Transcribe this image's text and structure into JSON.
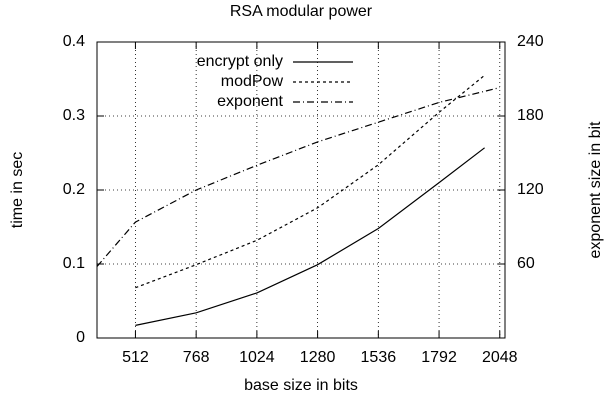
{
  "chart_data": {
    "type": "line",
    "title": "RSA modular power",
    "x_label": "base size in bits",
    "y_label": "time in sec",
    "y2_label": "exponent size in bit",
    "xlim": [
      350,
      2070
    ],
    "xticks": [
      512,
      768,
      1024,
      1280,
      1536,
      1792,
      2048
    ],
    "ylim": [
      0,
      0.4
    ],
    "yticks": [
      0,
      0.1,
      0.2,
      0.3,
      0.4
    ],
    "y2lim": [
      0,
      240
    ],
    "y2ticks": [
      60,
      120,
      180,
      240
    ],
    "grid": true,
    "legend": "top-left",
    "series": [
      {
        "name": "encrypt only",
        "color": "#000000",
        "dash": "solid",
        "x": [
          512,
          768,
          1024,
          1280,
          1536,
          1792,
          1984
        ],
        "values": [
          0.017,
          0.034,
          0.061,
          0.099,
          0.148,
          0.21,
          0.257
        ]
      },
      {
        "name": "modPow",
        "color": "#000000",
        "dash": "dashed",
        "x": [
          512,
          768,
          1024,
          1280,
          1536,
          1792,
          1984
        ],
        "values": [
          0.068,
          0.099,
          0.132,
          0.176,
          0.234,
          0.305,
          0.355
        ]
      },
      {
        "name": "exponent",
        "color": "#000000",
        "dash": "dashdot",
        "axis": "y2",
        "x": [
          350,
          512,
          768,
          1024,
          1280,
          1536,
          1792,
          2048
        ],
        "values": [
          58,
          94,
          120,
          140,
          159,
          175,
          191,
          203
        ]
      }
    ]
  }
}
